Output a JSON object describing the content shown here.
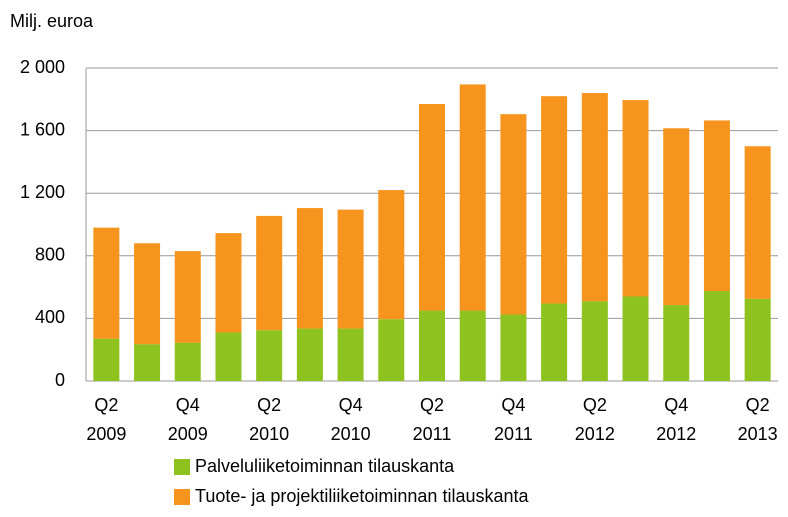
{
  "chart_data": {
    "type": "stacked_bar",
    "y_axis_label": "Milj. euroa",
    "categories": [
      [
        "Q2",
        "2009"
      ],
      null,
      [
        "Q4",
        "2009"
      ],
      null,
      [
        "Q2",
        "2010"
      ],
      null,
      [
        "Q4",
        "2010"
      ],
      null,
      [
        "Q2",
        "2011"
      ],
      null,
      [
        "Q4",
        "2011"
      ],
      null,
      [
        "Q2",
        "2012"
      ],
      null,
      [
        "Q4",
        "2012"
      ],
      null,
      [
        "Q2",
        "2013"
      ]
    ],
    "series": [
      {
        "name": "Palveluliiketoiminnan tilauskanta",
        "color": "#8dc21f",
        "values": [
          270,
          235,
          245,
          310,
          325,
          335,
          335,
          395,
          450,
          450,
          425,
          495,
          510,
          540,
          485,
          575,
          525
        ]
      },
      {
        "name": "Tuote- ja projektiliiketoiminnan tilauskanta",
        "color": "#f7941d",
        "values": [
          710,
          645,
          585,
          635,
          730,
          770,
          760,
          825,
          1320,
          1445,
          1280,
          1325,
          1330,
          1255,
          1130,
          1090,
          975
        ]
      }
    ],
    "ylim": [
      0,
      2000
    ],
    "yticks": [
      0,
      400,
      800,
      {
        "value": 1200,
        "label": "1 200"
      },
      {
        "value": 1600,
        "label": "1 600"
      },
      {
        "value": 2000,
        "label": "2 000"
      }
    ],
    "grid": true,
    "legend": "bottom"
  }
}
